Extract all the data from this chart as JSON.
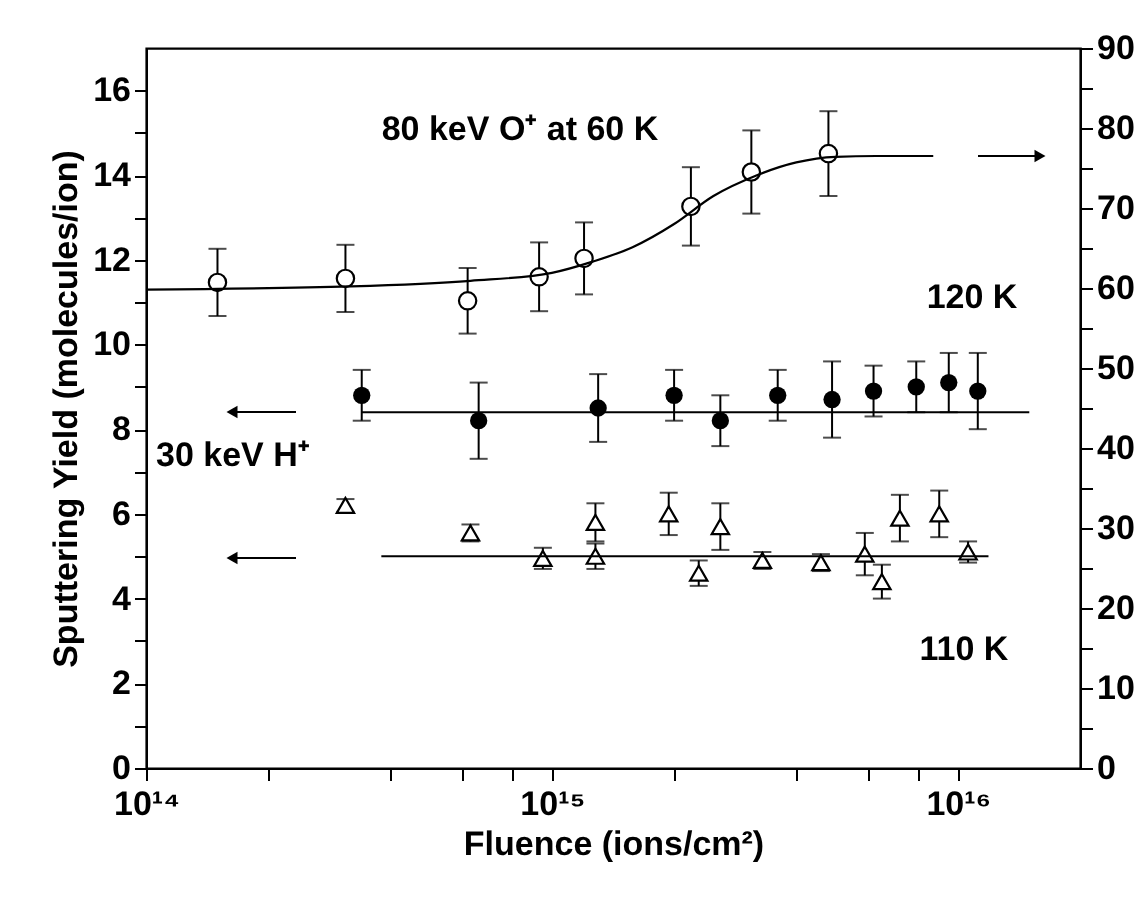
{
  "chart_data": {
    "type": "scatter",
    "xlabel": "Fluence (ions/cm²)",
    "ylabel": "Sputtering Yield (molecules/ion)",
    "log": "x",
    "grid": false,
    "legend": "right",
    "xlim": [
      100000000000000.0,
      2e+16
    ],
    "xticks": [
      {
        "value": 100000000000000.0,
        "label": "10¹⁴"
      },
      {
        "value": 200000000000000.0,
        "label": null
      },
      {
        "value": 400000000000000.0,
        "label": null
      },
      {
        "value": 600000000000000.0,
        "label": null
      },
      {
        "value": 800000000000000.0,
        "label": null
      },
      {
        "value": 1000000000000000.0,
        "label": "10¹⁵"
      },
      {
        "value": 2000000000000000.0,
        "label": null
      },
      {
        "value": 4000000000000000.0,
        "label": null
      },
      {
        "value": 6000000000000000.0,
        "label": null
      },
      {
        "value": 8000000000000000.0,
        "label": null
      },
      {
        "value": 1e+16,
        "label": "10¹⁶"
      }
    ],
    "ylim": [
      0,
      17
    ],
    "yticks": [
      0,
      {
        "value": 1,
        "label": null
      },
      2,
      {
        "value": 3,
        "label": null
      },
      4,
      {
        "value": 5,
        "label": null
      },
      6,
      {
        "value": 7,
        "label": null
      },
      8,
      {
        "value": 9,
        "label": null
      },
      10,
      {
        "value": 11,
        "label": null
      },
      12,
      {
        "value": 13,
        "label": null
      },
      14,
      {
        "value": 15,
        "label": null
      },
      16
    ],
    "y2lim": [
      0,
      90
    ],
    "y2ticks": [
      0,
      {
        "value": 5,
        "label": null
      },
      10,
      {
        "value": 15,
        "label": null
      },
      20,
      {
        "value": 25,
        "label": null
      },
      30,
      {
        "value": 35,
        "label": null
      },
      40,
      {
        "value": 45,
        "label": null
      },
      50,
      {
        "value": 55,
        "label": null
      },
      60,
      {
        "value": 65,
        "label": null
      },
      70,
      {
        "value": 75,
        "label": null
      },
      80,
      {
        "value": 85,
        "label": null
      },
      90
    ],
    "annotations": [
      "30 keV H⁺"
    ],
    "series": [
      {
        "name": "80 keV O⁺ at 60 K",
        "axis": "y2",
        "marker": "circle",
        "color": "#000000",
        "x": [
          150000000000000.0,
          310000000000000.0,
          620000000000000.0,
          930000000000000.0,
          1200000000000000.0,
          2200000000000000.0,
          3100000000000000.0,
          4800000000000000.0
        ],
        "values": [
          60.7,
          61.2,
          58.4,
          61.4,
          63.7,
          70.2,
          74.5,
          76.8
        ],
        "errors": [
          4.2,
          4.2,
          4.1,
          4.3,
          4.5,
          4.9,
          5.2,
          5.3
        ]
      },
      {
        "type": "line",
        "axis": "y2",
        "marker": "none",
        "line_style": "solid",
        "color": "#000000",
        "x": [
          100000000000000.0,
          320000000000000.0,
          630000000000000.0,
          1000000000000000.0,
          1260000000000000.0,
          1580000000000000.0,
          2000000000000000.0,
          2500000000000000.0,
          3200000000000000.0,
          4000000000000000.0,
          5000000000000000.0,
          6300000000000000.0,
          8700000000000000.0
        ],
        "values": [
          59.8,
          60.2,
          60.9,
          61.9,
          63.3,
          65.1,
          68.0,
          71.5,
          74.1,
          75.7,
          76.4,
          76.5,
          76.5
        ]
      },
      {
        "name": "120 K",
        "marker": "circle",
        "color": "#000000",
        "x": [
          340000000000000.0,
          660000000000000.0,
          1300000000000000.0,
          2000000000000000.0,
          2600000000000000.0,
          3600000000000000.0,
          4900000000000000.0,
          6200000000000000.0,
          7900000000000000.0,
          9500000000000000.0,
          1.12e+16
        ],
        "values": [
          8.8,
          8.2,
          8.5,
          8.8,
          8.2,
          8.8,
          8.7,
          8.9,
          9.0,
          9.1,
          8.9
        ],
        "errors": [
          0.6,
          0.9,
          0.8,
          0.6,
          0.6,
          0.6,
          0.9,
          0.6,
          0.6,
          0.7,
          0.9
        ]
      },
      {
        "type": "line",
        "marker": "none",
        "line_style": "solid",
        "color": "#000000",
        "x": [
          340000000000000.0,
          1.5e+16
        ],
        "values": [
          8.4,
          8.4
        ]
      },
      {
        "name": "110 K",
        "marker": "triangle",
        "color": "#000000",
        "x": [
          310000000000000.0,
          630000000000000.0,
          950000000000000.0,
          1280000000000000.0,
          1280000000000000.0,
          1940000000000000.0,
          2300000000000000.0,
          2600000000000000.0,
          3300000000000000.0,
          4600000000000000.0,
          5900000000000000.0,
          6500000000000000.0,
          7200000000000000.0,
          9000000000000000.0,
          1.06e+16
        ],
        "values": [
          6.2,
          5.55,
          4.95,
          5.8,
          5.0,
          6.0,
          4.6,
          5.7,
          4.9,
          4.85,
          5.05,
          4.4,
          5.9,
          6.0,
          5.1
        ],
        "errors": [
          0.15,
          0.2,
          0.25,
          0.45,
          0.3,
          0.5,
          0.3,
          0.55,
          0.2,
          0.2,
          0.5,
          0.4,
          0.55,
          0.55,
          0.25
        ]
      },
      {
        "type": "line",
        "marker": "none",
        "line_style": "solid",
        "color": "#000000",
        "x": [
          380000000000000.0,
          1.19e+16
        ],
        "values": [
          5.0,
          5.0
        ]
      }
    ]
  }
}
